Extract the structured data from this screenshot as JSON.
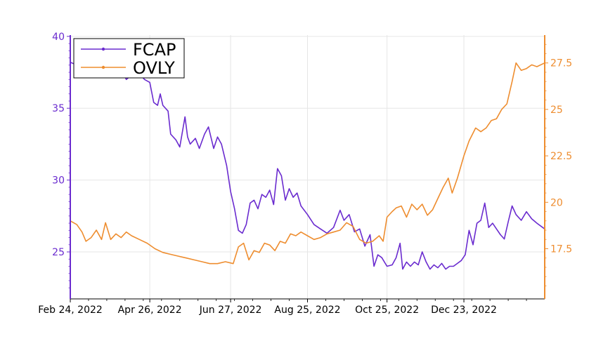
{
  "chart_data": {
    "type": "line",
    "title": "",
    "xlabel": "",
    "ylabel_left": "",
    "ylabel_right": "",
    "grid": true,
    "legend_position": "top-left",
    "x_start": "2022-02-24",
    "x_end": "2023-02-23",
    "x_ticks": [
      {
        "date": "2022-02-24",
        "label": "Feb 24, 2022"
      },
      {
        "date": "2022-04-26",
        "label": "Apr 26, 2022"
      },
      {
        "date": "2022-06-27",
        "label": "Jun 27, 2022"
      },
      {
        "date": "2022-08-25",
        "label": "Aug 25, 2022"
      },
      {
        "date": "2022-10-25",
        "label": "Oct 25, 2022"
      },
      {
        "date": "2022-12-23",
        "label": "Dec 23, 2022"
      }
    ],
    "y_left": {
      "range": [
        21730,
        40090
      ],
      "ticks": [
        25,
        30,
        35,
        40
      ],
      "tick_labels": [
        "25",
        "30",
        "35",
        "40"
      ],
      "color": "#6a2bcf"
    },
    "y_right": {
      "range": [
        14800,
        29000
      ],
      "ticks": [
        17.5,
        20,
        22.5,
        25,
        27.5
      ],
      "tick_labels": [
        "17.5",
        "20",
        "22.5",
        "25",
        "27.5"
      ],
      "color": "#ee8d2f"
    },
    "series": [
      {
        "name": "FCAP",
        "axis": "left",
        "color": "#6a2bcf",
        "points": [
          [
            "2022-02-24",
            38.2
          ],
          [
            "2022-03-01",
            38.0
          ],
          [
            "2022-03-08",
            37.9
          ],
          [
            "2022-03-15",
            38.0
          ],
          [
            "2022-03-22",
            37.6
          ],
          [
            "2022-03-29",
            37.8
          ],
          [
            "2022-04-05",
            37.5
          ],
          [
            "2022-04-08",
            37.0
          ],
          [
            "2022-04-12",
            37.3
          ],
          [
            "2022-04-18",
            37.4
          ],
          [
            "2022-04-22",
            37.0
          ],
          [
            "2022-04-26",
            36.8
          ],
          [
            "2022-04-29",
            35.4
          ],
          [
            "2022-05-02",
            35.2
          ],
          [
            "2022-05-04",
            36.0
          ],
          [
            "2022-05-06",
            35.2
          ],
          [
            "2022-05-10",
            34.8
          ],
          [
            "2022-05-12",
            33.2
          ],
          [
            "2022-05-16",
            32.8
          ],
          [
            "2022-05-19",
            32.3
          ],
          [
            "2022-05-23",
            34.4
          ],
          [
            "2022-05-25",
            33.0
          ],
          [
            "2022-05-27",
            32.5
          ],
          [
            "2022-05-31",
            32.9
          ],
          [
            "2022-06-03",
            32.2
          ],
          [
            "2022-06-07",
            33.2
          ],
          [
            "2022-06-10",
            33.7
          ],
          [
            "2022-06-14",
            32.2
          ],
          [
            "2022-06-17",
            33.0
          ],
          [
            "2022-06-20",
            32.5
          ],
          [
            "2022-06-24",
            31.0
          ],
          [
            "2022-06-27",
            29.2
          ],
          [
            "2022-06-30",
            28.0
          ],
          [
            "2022-07-03",
            26.5
          ],
          [
            "2022-07-06",
            26.3
          ],
          [
            "2022-07-09",
            26.9
          ],
          [
            "2022-07-12",
            28.4
          ],
          [
            "2022-07-15",
            28.6
          ],
          [
            "2022-07-18",
            28.0
          ],
          [
            "2022-07-21",
            29.0
          ],
          [
            "2022-07-24",
            28.8
          ],
          [
            "2022-07-27",
            29.3
          ],
          [
            "2022-07-30",
            28.3
          ],
          [
            "2022-08-02",
            30.8
          ],
          [
            "2022-08-05",
            30.3
          ],
          [
            "2022-08-08",
            28.6
          ],
          [
            "2022-08-11",
            29.4
          ],
          [
            "2022-08-14",
            28.8
          ],
          [
            "2022-08-17",
            29.1
          ],
          [
            "2022-08-20",
            28.2
          ],
          [
            "2022-08-25",
            27.6
          ],
          [
            "2022-08-30",
            26.9
          ],
          [
            "2022-09-04",
            26.6
          ],
          [
            "2022-09-09",
            26.3
          ],
          [
            "2022-09-14",
            26.7
          ],
          [
            "2022-09-19",
            27.9
          ],
          [
            "2022-09-22",
            27.2
          ],
          [
            "2022-09-26",
            27.6
          ],
          [
            "2022-09-30",
            26.4
          ],
          [
            "2022-10-04",
            26.6
          ],
          [
            "2022-10-08",
            25.4
          ],
          [
            "2022-10-12",
            26.2
          ],
          [
            "2022-10-15",
            24.0
          ],
          [
            "2022-10-18",
            24.8
          ],
          [
            "2022-10-21",
            24.6
          ],
          [
            "2022-10-25",
            24.0
          ],
          [
            "2022-10-29",
            24.1
          ],
          [
            "2022-11-01",
            24.6
          ],
          [
            "2022-11-04",
            25.6
          ],
          [
            "2022-11-06",
            23.8
          ],
          [
            "2022-11-09",
            24.3
          ],
          [
            "2022-11-12",
            24.0
          ],
          [
            "2022-11-15",
            24.3
          ],
          [
            "2022-11-18",
            24.1
          ],
          [
            "2022-11-21",
            25.0
          ],
          [
            "2022-11-24",
            24.3
          ],
          [
            "2022-11-27",
            23.8
          ],
          [
            "2022-11-30",
            24.1
          ],
          [
            "2022-12-03",
            23.9
          ],
          [
            "2022-12-06",
            24.2
          ],
          [
            "2022-12-09",
            23.8
          ],
          [
            "2022-12-12",
            24.0
          ],
          [
            "2022-12-15",
            24.0
          ],
          [
            "2022-12-18",
            24.2
          ],
          [
            "2022-12-21",
            24.4
          ],
          [
            "2022-12-24",
            24.8
          ],
          [
            "2022-12-27",
            26.5
          ],
          [
            "2022-12-30",
            25.5
          ],
          [
            "2023-01-02",
            27.0
          ],
          [
            "2023-01-05",
            27.2
          ],
          [
            "2023-01-08",
            28.4
          ],
          [
            "2023-01-11",
            26.7
          ],
          [
            "2023-01-14",
            27.0
          ],
          [
            "2023-01-17",
            26.6
          ],
          [
            "2023-01-20",
            26.2
          ],
          [
            "2023-01-23",
            25.9
          ],
          [
            "2023-01-26",
            27.1
          ],
          [
            "2023-01-29",
            28.2
          ],
          [
            "2023-02-01",
            27.6
          ],
          [
            "2023-02-05",
            27.2
          ],
          [
            "2023-02-09",
            27.8
          ],
          [
            "2023-02-13",
            27.3
          ],
          [
            "2023-02-17",
            27.0
          ],
          [
            "2023-02-23",
            26.6
          ]
        ]
      },
      {
        "name": "OVLY",
        "axis": "right",
        "color": "#ee8d2f",
        "points": [
          [
            "2022-02-24",
            19.0
          ],
          [
            "2022-03-01",
            18.8
          ],
          [
            "2022-03-05",
            18.4
          ],
          [
            "2022-03-08",
            17.9
          ],
          [
            "2022-03-12",
            18.1
          ],
          [
            "2022-03-16",
            18.5
          ],
          [
            "2022-03-20",
            18.0
          ],
          [
            "2022-03-23",
            18.9
          ],
          [
            "2022-03-27",
            18.0
          ],
          [
            "2022-03-31",
            18.3
          ],
          [
            "2022-04-04",
            18.1
          ],
          [
            "2022-04-08",
            18.4
          ],
          [
            "2022-04-12",
            18.2
          ],
          [
            "2022-04-18",
            18.0
          ],
          [
            "2022-04-24",
            17.8
          ],
          [
            "2022-04-30",
            17.5
          ],
          [
            "2022-05-06",
            17.3
          ],
          [
            "2022-05-12",
            17.2
          ],
          [
            "2022-05-18",
            17.1
          ],
          [
            "2022-05-24",
            17.0
          ],
          [
            "2022-05-30",
            16.9
          ],
          [
            "2022-06-05",
            16.8
          ],
          [
            "2022-06-11",
            16.7
          ],
          [
            "2022-06-17",
            16.7
          ],
          [
            "2022-06-23",
            16.8
          ],
          [
            "2022-06-29",
            16.7
          ],
          [
            "2022-07-03",
            17.6
          ],
          [
            "2022-07-07",
            17.8
          ],
          [
            "2022-07-11",
            16.9
          ],
          [
            "2022-07-15",
            17.4
          ],
          [
            "2022-07-19",
            17.3
          ],
          [
            "2022-07-23",
            17.8
          ],
          [
            "2022-07-27",
            17.7
          ],
          [
            "2022-07-31",
            17.4
          ],
          [
            "2022-08-04",
            17.9
          ],
          [
            "2022-08-08",
            17.8
          ],
          [
            "2022-08-12",
            18.3
          ],
          [
            "2022-08-16",
            18.2
          ],
          [
            "2022-08-20",
            18.4
          ],
          [
            "2022-08-25",
            18.2
          ],
          [
            "2022-08-30",
            18.0
          ],
          [
            "2022-09-04",
            18.1
          ],
          [
            "2022-09-09",
            18.3
          ],
          [
            "2022-09-14",
            18.4
          ],
          [
            "2022-09-19",
            18.5
          ],
          [
            "2022-09-24",
            18.9
          ],
          [
            "2022-09-29",
            18.7
          ],
          [
            "2022-10-04",
            18.0
          ],
          [
            "2022-10-09",
            17.8
          ],
          [
            "2022-10-14",
            17.9
          ],
          [
            "2022-10-19",
            18.2
          ],
          [
            "2022-10-22",
            17.9
          ],
          [
            "2022-10-25",
            19.2
          ],
          [
            "2022-10-29",
            19.5
          ],
          [
            "2022-11-01",
            19.7
          ],
          [
            "2022-11-05",
            19.8
          ],
          [
            "2022-11-09",
            19.2
          ],
          [
            "2022-11-13",
            19.9
          ],
          [
            "2022-11-17",
            19.6
          ],
          [
            "2022-11-21",
            19.9
          ],
          [
            "2022-11-25",
            19.3
          ],
          [
            "2022-11-29",
            19.6
          ],
          [
            "2022-12-03",
            20.2
          ],
          [
            "2022-12-07",
            20.8
          ],
          [
            "2022-12-11",
            21.3
          ],
          [
            "2022-12-14",
            20.5
          ],
          [
            "2022-12-18",
            21.3
          ],
          [
            "2022-12-23",
            22.5
          ],
          [
            "2022-12-27",
            23.3
          ],
          [
            "2023-01-01",
            24.0
          ],
          [
            "2023-01-05",
            23.8
          ],
          [
            "2023-01-09",
            24.0
          ],
          [
            "2023-01-13",
            24.4
          ],
          [
            "2023-01-17",
            24.5
          ],
          [
            "2023-01-21",
            25.0
          ],
          [
            "2023-01-25",
            25.3
          ],
          [
            "2023-01-29",
            26.5
          ],
          [
            "2023-02-01",
            27.5
          ],
          [
            "2023-02-05",
            27.1
          ],
          [
            "2023-02-09",
            27.2
          ],
          [
            "2023-02-13",
            27.4
          ],
          [
            "2023-02-17",
            27.3
          ],
          [
            "2023-02-23",
            27.5
          ]
        ]
      }
    ]
  }
}
